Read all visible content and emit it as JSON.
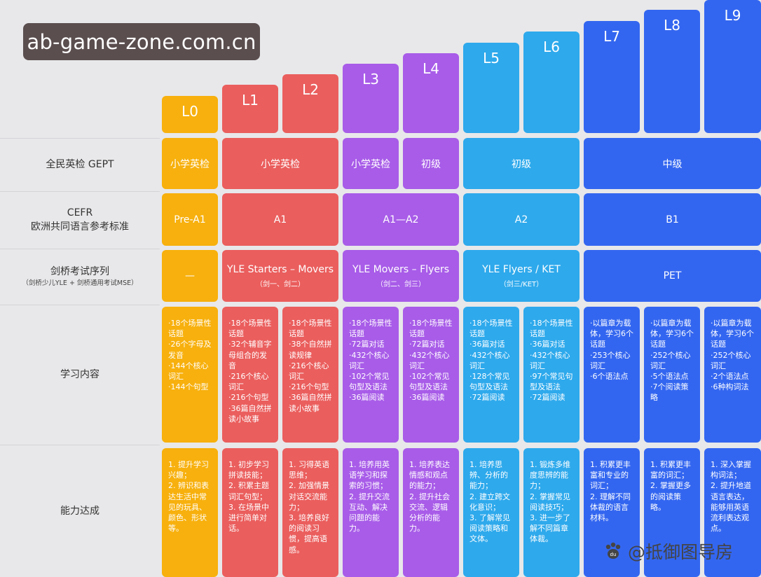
{
  "watermark": "ab-game-zone.com.cn",
  "footer": "@抵御图导房",
  "levels": [
    "L0",
    "L1",
    "L2",
    "L3",
    "L4",
    "L5",
    "L6",
    "L7",
    "L8",
    "L9"
  ],
  "row_labels": {
    "gept": "全民英检 GEPT",
    "cefr_1": "CEFR",
    "cefr_2": "欧洲共同语言参考标准",
    "cambridge_1": "剑桥考试序列",
    "cambridge_2": "（剑桥少儿YLE + 剑桥通用考试MSE）",
    "content": "学习内容",
    "ability": "能力达成"
  },
  "gept": [
    "小学英检",
    "小学英检",
    "小学英检",
    "初级",
    "初级",
    "中级"
  ],
  "cefr": [
    "Pre-A1",
    "A1",
    "A1—A2",
    "A2",
    "B1"
  ],
  "cambridge": [
    {
      "main": "—",
      "sub": ""
    },
    {
      "main": "YLE Starters – Movers",
      "sub": "（剑一、剑二）"
    },
    {
      "main": "YLE Movers – Flyers",
      "sub": "（剑二、剑三）"
    },
    {
      "main": "YLE Flyers / KET",
      "sub": "（剑三/KET）"
    },
    {
      "main": "PET",
      "sub": ""
    }
  ],
  "content": [
    "·18个场景性话题\n·26个字母及发音\n·144个核心词汇\n·144个句型",
    "·18个场景性话题\n·32个辅音字母组合的发音\n·216个核心词汇\n·216个句型\n·36篇自然拼读小故事",
    "·18个场景性话题\n·38个自然拼读规律\n·216个核心词汇\n·216个句型\n·36篇自然拼读小故事",
    "·18个场景性话题\n·72篇对话\n·432个核心词汇\n·102个常见句型及语法\n·36篇阅读",
    "·18个场景性话题\n·72篇对话\n·432个核心词汇\n·102个常见句型及语法\n·36篇阅读",
    "·18个场景性话题\n·36篇对话\n·432个核心词汇\n·128个常见句型及语法\n·72篇阅读",
    "·18个场景性话题\n·36篇对话\n·432个核心词汇\n·97个常见句型及语法\n·72篇阅读",
    "·以篇章为载体，学习6个话题\n·253个核心词汇\n·6个语法点",
    "·以篇章为载体，学习6个话题\n·252个核心词汇\n·5个语法点\n·7个阅读策略",
    "·以篇章为载体，学习6个话题\n·252个核心词汇\n·2个语法点\n·6种构词法"
  ],
  "ability": [
    "1. 提升学习兴趣；\n2. 辨识和表达生活中常见的玩具、颜色、形状等。",
    "1. 初步学习拼读技能；\n2. 积累主题词汇句型；\n3. 在场景中进行简单对话。",
    "1. 习得英语思维；\n2. 加强情景对话交流能力；\n3. 培养良好的阅读习惯，提高语感。",
    "1. 培养用英语学习和探索的习惯；\n2. 提升交流互动、解决问题的能力。",
    "1. 培养表达情感和观点的能力；\n2. 提升社会交流、逻辑分析的能力。",
    "1. 培养思辨、分析的能力；\n2. 建立跨文化意识；\n3. 了解常见阅读策略和文体。",
    "1. 锻炼多维度思辨的能力；\n2. 掌握常见阅读技巧；\n3. 进一步了解不同篇章体裁。",
    "1. 积累更丰富和专业的词汇；\n2. 理解不同体裁的语言材料。",
    "1. 积累更丰富的词汇；\n2. 掌握更多的阅读策略。",
    "1. 深入掌握构词法；\n2. 提升地道语言表达，能够用英语流利表达观点。"
  ],
  "colors": {
    "yellow": "#f7b00d",
    "red": "#ea5e5d",
    "purple": "#a85ce8",
    "cyan": "#2ea9ec",
    "blue": "#3366f0"
  }
}
